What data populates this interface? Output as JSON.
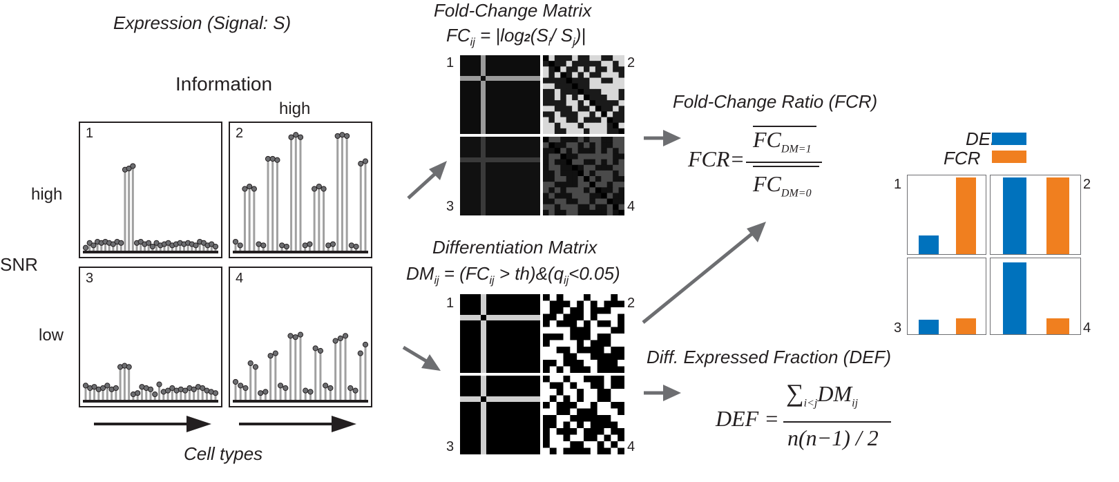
{
  "labels": {
    "expression_title": "Expression (Signal: S)",
    "information": "Information",
    "high_info": "high",
    "snr": "SNR",
    "high_snr": "high",
    "low_snr": "low",
    "cell_types": "Cell types",
    "panel_numbers": [
      "1",
      "2",
      "3",
      "4"
    ]
  },
  "fold_change": {
    "title": "Fold-Change Matrix",
    "formula_lhs": "FC",
    "formula_sub": "ij",
    "formula_rhs_a": " = |log",
    "formula_rhs_b": "2",
    "formula_rhs_c": "(S",
    "formula_rhs_d": "i",
    "formula_rhs_e": "/ S",
    "formula_rhs_f": "j",
    "formula_rhs_g": ")|"
  },
  "diff_matrix": {
    "title": "Differentiation Matrix",
    "f1": "DM",
    "s1": "ij",
    "f2": " = (FC",
    "s2": "ij",
    "f3": " > th)&(q",
    "s3": "ij",
    "f4": "<0.05)"
  },
  "fcr": {
    "title": "Fold-Change Ratio (FCR)",
    "lhs": "FCR=",
    "num": "FC",
    "num_sub": "DM=1",
    "den": "FC",
    "den_sub": "DM=0"
  },
  "def": {
    "title": "Diff. Expressed Fraction (DEF)",
    "lhs": "DEF =",
    "sum": "∑",
    "sum_sub": "i<j",
    "dm": "DM",
    "dm_sub": "ij",
    "den": "n(n−1) / 2"
  },
  "legend": {
    "def_label": "DEF",
    "fcr_label": "FCR",
    "def_color": "#0072bd",
    "fcr_color": "#f07f1f"
  },
  "chart_data": {
    "type": "bar",
    "categories": [
      "DEF",
      "FCR"
    ],
    "panels": [
      {
        "name": "1",
        "values": [
          0.24,
          1.0
        ]
      },
      {
        "name": "2",
        "values": [
          1.0,
          1.0
        ]
      },
      {
        "name": "3",
        "values": [
          0.2,
          0.22
        ]
      },
      {
        "name": "4",
        "values": [
          0.97,
          0.22
        ]
      }
    ],
    "ylim": [
      0,
      1.03
    ]
  },
  "stems": {
    "panel1": [
      0.03,
      0.07,
      0.05,
      0.08,
      0.07,
      0.08,
      0.07,
      0.06,
      0.08,
      0.07,
      0.68,
      0.69,
      0.71,
      0.07,
      0.08,
      0.06,
      0.07,
      0.04,
      0.07,
      0.05,
      0.06,
      0.07,
      0.05,
      0.06,
      0.07,
      0.06,
      0.07,
      0.06,
      0.05,
      0.08,
      0.07,
      0.05,
      0.06,
      0.04
    ],
    "panel2": [
      0.08,
      0.05,
      0.52,
      0.54,
      0.52,
      0.06,
      0.05,
      0.77,
      0.77,
      0.76,
      0.05,
      0.04,
      0.95,
      0.97,
      0.95,
      0.05,
      0.06,
      0.52,
      0.54,
      0.52,
      0.05,
      0.06,
      0.96,
      0.97,
      0.96,
      0.05,
      0.04,
      0.73,
      0.75
    ],
    "panel3": [
      0.12,
      0.1,
      0.11,
      0.09,
      0.1,
      0.12,
      0.09,
      0.1,
      0.27,
      0.28,
      0.27,
      0.05,
      0.06,
      0.11,
      0.1,
      0.09,
      0.05,
      0.13,
      0.07,
      0.08,
      0.1,
      0.08,
      0.09,
      0.08,
      0.1,
      0.09,
      0.11,
      0.1,
      0.08,
      0.07,
      0.06
    ],
    "panel4": [
      0.15,
      0.12,
      0.1,
      0.3,
      0.27,
      0.06,
      0.07,
      0.36,
      0.38,
      0.12,
      0.1,
      0.52,
      0.51,
      0.53,
      0.08,
      0.07,
      0.42,
      0.4,
      0.12,
      0.1,
      0.48,
      0.5,
      0.52,
      0.1,
      0.08,
      0.38,
      0.45
    ]
  }
}
